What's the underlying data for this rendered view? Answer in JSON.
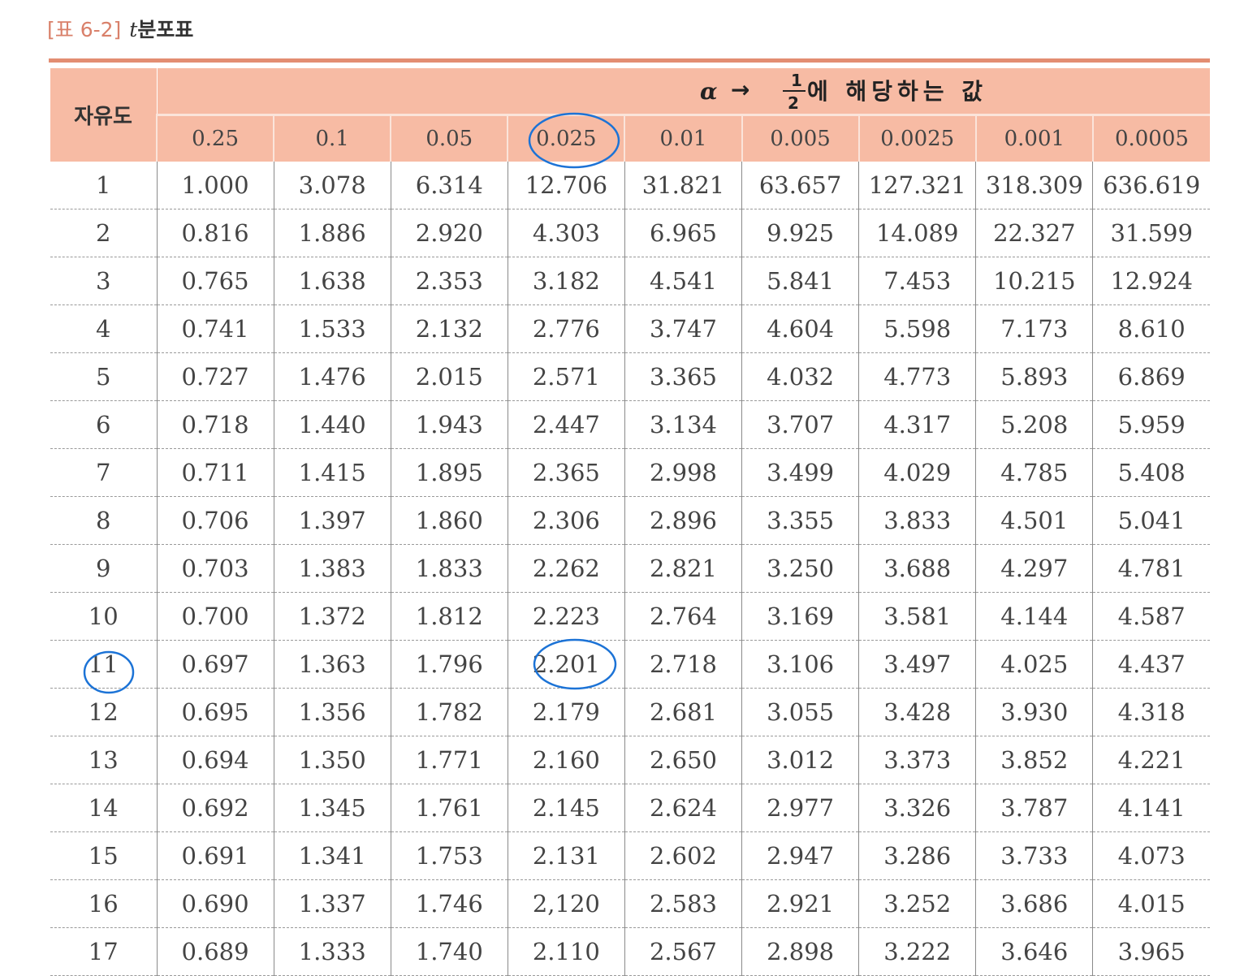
{
  "caption": {
    "tag": "[표 6-2]",
    "variable": "t",
    "title": "분포표"
  },
  "table": {
    "df_header": "자유도",
    "alpha_columns": [
      "0.25",
      "0.1",
      "0.05",
      "0.025",
      "0.01",
      "0.005",
      "0.0025",
      "0.001",
      "0.0005"
    ],
    "rows": [
      {
        "df": "1",
        "values": [
          "1.000",
          "3.078",
          "6.314",
          "12.706",
          "31.821",
          "63.657",
          "127.321",
          "318.309",
          "636.619"
        ]
      },
      {
        "df": "2",
        "values": [
          "0.816",
          "1.886",
          "2.920",
          "4.303",
          "6.965",
          "9.925",
          "14.089",
          "22.327",
          "31.599"
        ]
      },
      {
        "df": "3",
        "values": [
          "0.765",
          "1.638",
          "2.353",
          "3.182",
          "4.541",
          "5.841",
          "7.453",
          "10.215",
          "12.924"
        ]
      },
      {
        "df": "4",
        "values": [
          "0.741",
          "1.533",
          "2.132",
          "2.776",
          "3.747",
          "4.604",
          "5.598",
          "7.173",
          "8.610"
        ]
      },
      {
        "df": "5",
        "values": [
          "0.727",
          "1.476",
          "2.015",
          "2.571",
          "3.365",
          "4.032",
          "4.773",
          "5.893",
          "6.869"
        ]
      },
      {
        "df": "6",
        "values": [
          "0.718",
          "1.440",
          "1.943",
          "2.447",
          "3.134",
          "3.707",
          "4.317",
          "5.208",
          "5.959"
        ]
      },
      {
        "df": "7",
        "values": [
          "0.711",
          "1.415",
          "1.895",
          "2.365",
          "2.998",
          "3.499",
          "4.029",
          "4.785",
          "5.408"
        ]
      },
      {
        "df": "8",
        "values": [
          "0.706",
          "1.397",
          "1.860",
          "2.306",
          "2.896",
          "3.355",
          "3.833",
          "4.501",
          "5.041"
        ]
      },
      {
        "df": "9",
        "values": [
          "0.703",
          "1.383",
          "1.833",
          "2.262",
          "2.821",
          "3.250",
          "3.688",
          "4.297",
          "4.781"
        ]
      },
      {
        "df": "10",
        "values": [
          "0.700",
          "1.372",
          "1.812",
          "2.223",
          "2.764",
          "3.169",
          "3.581",
          "4.144",
          "4.587"
        ]
      },
      {
        "df": "11",
        "values": [
          "0.697",
          "1.363",
          "1.796",
          "2.201",
          "2.718",
          "3.106",
          "3.497",
          "4.025",
          "4.437"
        ]
      },
      {
        "df": "12",
        "values": [
          "0.695",
          "1.356",
          "1.782",
          "2.179",
          "2.681",
          "3.055",
          "3.428",
          "3.930",
          "4.318"
        ]
      },
      {
        "df": "13",
        "values": [
          "0.694",
          "1.350",
          "1.771",
          "2.160",
          "2.650",
          "3.012",
          "3.373",
          "3.852",
          "4.221"
        ]
      },
      {
        "df": "14",
        "values": [
          "0.692",
          "1.345",
          "1.761",
          "2.145",
          "2.624",
          "2.977",
          "3.326",
          "3.787",
          "4.141"
        ]
      },
      {
        "df": "15",
        "values": [
          "0.691",
          "1.341",
          "1.753",
          "2.131",
          "2.602",
          "2.947",
          "3.286",
          "3.733",
          "4.073"
        ]
      },
      {
        "df": "16",
        "values": [
          "0.690",
          "1.337",
          "1.746",
          "2,120",
          "2.583",
          "2.921",
          "3.252",
          "3.686",
          "4.015"
        ]
      },
      {
        "df": "17",
        "values": [
          "0.689",
          "1.333",
          "1.740",
          "2.110",
          "2.567",
          "2.898",
          "3.222",
          "3.646",
          "3.965"
        ]
      }
    ],
    "highlight": {
      "row_df": "11",
      "col": "0.025",
      "color": "#c9402f"
    }
  },
  "handwritten_note": {
    "alpha_symbol": "α",
    "arrow": "→",
    "fraction_num": "1",
    "fraction_den": "2",
    "text": "에 해당하는 값",
    "ink_color": "#1c73d6"
  }
}
